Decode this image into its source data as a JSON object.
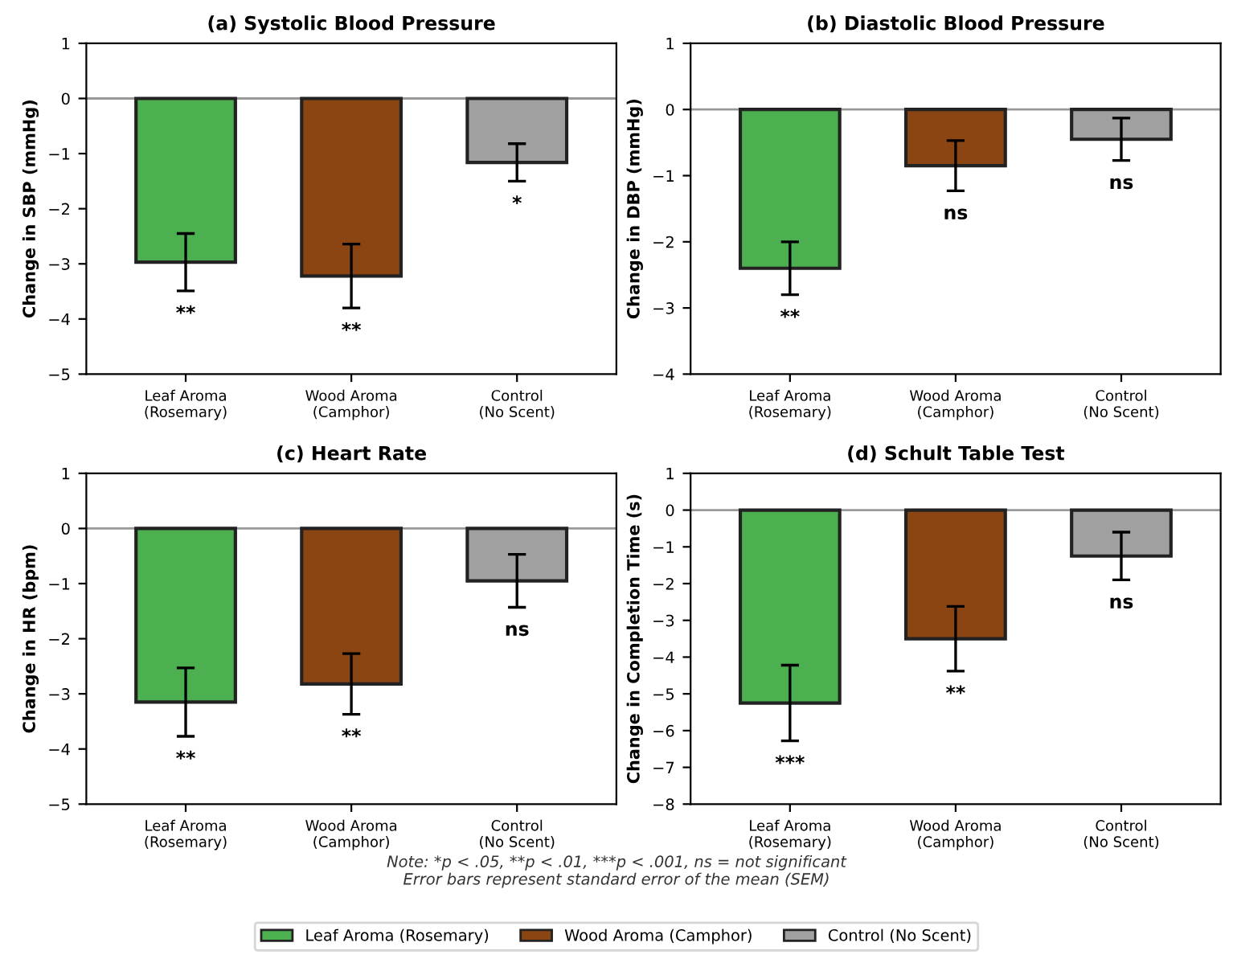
{
  "chart_data": [
    {
      "type": "bar",
      "title": "(a) Systolic Blood Pressure",
      "ylabel": "Change in SBP (mmHg)",
      "categories": [
        "Leaf Aroma\n(Rosemary)",
        "Wood Aroma\n(Camphor)",
        "Control\n(No Scent)"
      ],
      "series": [
        {
          "color": "#4caf50",
          "values": [
            -2.97,
            null,
            null
          ],
          "errors": [
            0.52,
            null,
            null
          ],
          "value_labels": [
            "**",
            null,
            null
          ]
        },
        {
          "color": "#8b4513",
          "values": [
            null,
            -3.22,
            null
          ],
          "errors": [
            null,
            0.58,
            null
          ],
          "value_labels": [
            null,
            "**",
            null
          ]
        },
        {
          "color": "#a0a0a0",
          "values": [
            null,
            null,
            -1.16
          ],
          "errors": [
            null,
            null,
            0.34
          ],
          "value_labels": [
            null,
            null,
            "*"
          ]
        }
      ],
      "ylim": [
        -5,
        1
      ],
      "yticks": [
        -5,
        -4,
        -3,
        -2,
        -1,
        0,
        1
      ],
      "ref_lines": [
        {
          "axis": "y",
          "value": 0,
          "color": "#999999"
        }
      ],
      "grid": false
    },
    {
      "type": "bar",
      "title": "(b) Diastolic Blood Pressure",
      "ylabel": "Change in DBP (mmHg)",
      "categories": [
        "Leaf Aroma\n(Rosemary)",
        "Wood Aroma\n(Camphor)",
        "Control\n(No Scent)"
      ],
      "series": [
        {
          "color": "#4caf50",
          "values": [
            -2.4,
            null,
            null
          ],
          "errors": [
            0.4,
            null,
            null
          ],
          "value_labels": [
            "**",
            null,
            null
          ]
        },
        {
          "color": "#8b4513",
          "values": [
            null,
            -0.85,
            null
          ],
          "errors": [
            null,
            0.38,
            null
          ],
          "value_labels": [
            null,
            "ns",
            null
          ]
        },
        {
          "color": "#a0a0a0",
          "values": [
            null,
            null,
            -0.45
          ],
          "errors": [
            null,
            null,
            0.32
          ],
          "value_labels": [
            null,
            null,
            "ns"
          ]
        }
      ],
      "ylim": [
        -4,
        1
      ],
      "yticks": [
        -4,
        -3,
        -2,
        -1,
        0,
        1
      ],
      "ref_lines": [
        {
          "axis": "y",
          "value": 0,
          "color": "#999999"
        }
      ],
      "grid": false
    },
    {
      "type": "bar",
      "title": "(c) Heart Rate",
      "ylabel": "Change in HR (bpm)",
      "categories": [
        "Leaf Aroma\n(Rosemary)",
        "Wood Aroma\n(Camphor)",
        "Control\n(No Scent)"
      ],
      "series": [
        {
          "color": "#4caf50",
          "values": [
            -3.15,
            null,
            null
          ],
          "errors": [
            0.62,
            null,
            null
          ],
          "value_labels": [
            "**",
            null,
            null
          ]
        },
        {
          "color": "#8b4513",
          "values": [
            null,
            -2.82,
            null
          ],
          "errors": [
            null,
            0.55,
            null
          ],
          "value_labels": [
            null,
            "**",
            null
          ]
        },
        {
          "color": "#a0a0a0",
          "values": [
            null,
            null,
            -0.95
          ],
          "errors": [
            null,
            null,
            0.48
          ],
          "value_labels": [
            null,
            null,
            "ns"
          ]
        }
      ],
      "ylim": [
        -5,
        1
      ],
      "yticks": [
        -5,
        -4,
        -3,
        -2,
        -1,
        0,
        1
      ],
      "ref_lines": [
        {
          "axis": "y",
          "value": 0,
          "color": "#999999"
        }
      ],
      "grid": false
    },
    {
      "type": "bar",
      "title": "(d) Schult Table Test",
      "ylabel": "Change in Completion Time (s)",
      "categories": [
        "Leaf Aroma\n(Rosemary)",
        "Wood Aroma\n(Camphor)",
        "Control\n(No Scent)"
      ],
      "series": [
        {
          "name": "Leaf Aroma (Rosemary)",
          "color": "#4caf50",
          "values": [
            -5.25,
            null,
            null
          ],
          "errors": [
            1.03,
            null,
            null
          ],
          "value_labels": [
            "***",
            null,
            null
          ]
        },
        {
          "name": "Wood Aroma (Camphor)",
          "color": "#8b4513",
          "values": [
            null,
            -3.5,
            null
          ],
          "errors": [
            null,
            0.88,
            null
          ],
          "value_labels": [
            null,
            "**",
            null
          ]
        },
        {
          "name": "Control (No Scent)",
          "color": "#a0a0a0",
          "values": [
            null,
            null,
            -1.25
          ],
          "errors": [
            null,
            null,
            0.65
          ],
          "value_labels": [
            null,
            null,
            "ns"
          ]
        }
      ],
      "ylim": [
        -8,
        1
      ],
      "yticks": [
        -8,
        -7,
        -6,
        -5,
        -4,
        -3,
        -2,
        -1,
        0,
        1
      ],
      "ref_lines": [
        {
          "axis": "y",
          "value": 0,
          "color": "#999999"
        }
      ],
      "grid": false,
      "legend": "bottom",
      "annotations": [
        "Note: *p < .05, **p < .01, ***p < .001, ns = not significant\nError bars represent standard error of the mean (SEM)"
      ]
    }
  ]
}
